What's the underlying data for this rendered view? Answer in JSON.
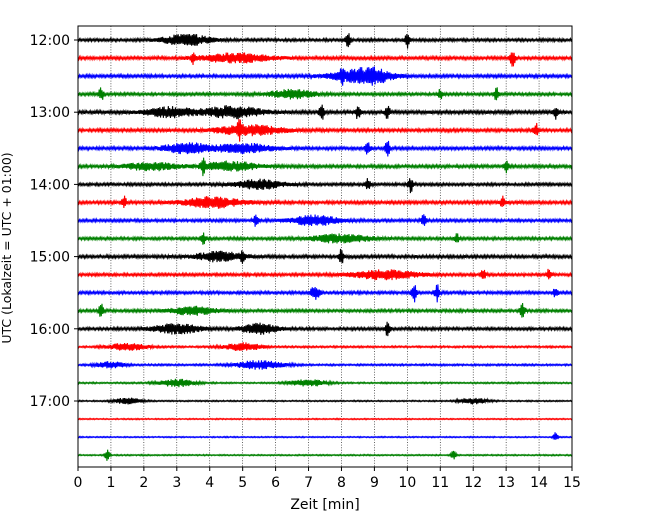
{
  "chart_data": {
    "type": "line",
    "title": "",
    "xlabel": "Zeit  [min]",
    "ylabel": "UTC (Lokalzeit = UTC + 01:00)",
    "xlim": [
      0,
      15
    ],
    "x_ticks": [
      0,
      1,
      2,
      3,
      4,
      5,
      6,
      7,
      8,
      9,
      10,
      11,
      12,
      13,
      14,
      15
    ],
    "x_tick_labels": [
      "0",
      "1",
      "2",
      "3",
      "4",
      "5",
      "6",
      "7",
      "8",
      "9",
      "10",
      "11",
      "12",
      "13",
      "14",
      "15"
    ],
    "y_tick_labels": [
      "12:00",
      "13:00",
      "14:00",
      "15:00",
      "16:00",
      "17:00"
    ],
    "y_tick_rows": [
      0,
      4,
      8,
      12,
      16,
      20
    ],
    "grid": "vertical dotted lines at each minute",
    "trace_colors": [
      "#000000",
      "#ff0000",
      "#0000ff",
      "#008000"
    ],
    "series": [
      {
        "start": "12:00",
        "amplitude": 0.45,
        "events": [
          {
            "t": 3.3,
            "a": 1.8,
            "w": 0.5
          },
          {
            "t": 8.2,
            "a": 2.6,
            "w": 0.05
          },
          {
            "t": 10.0,
            "a": 3.2,
            "w": 0.05
          }
        ]
      },
      {
        "start": "12:15",
        "amplitude": 0.5,
        "events": [
          {
            "t": 4.8,
            "a": 1.5,
            "w": 0.7
          },
          {
            "t": 3.5,
            "a": 1.6,
            "w": 0.05
          },
          {
            "t": 13.2,
            "a": 3.2,
            "w": 0.05
          }
        ]
      },
      {
        "start": "12:30",
        "amplitude": 0.5,
        "events": [
          {
            "t": 8.5,
            "a": 1.6,
            "w": 0.6
          },
          {
            "t": 8.0,
            "a": 2.0,
            "w": 0.05
          },
          {
            "t": 9.0,
            "a": 1.6,
            "w": 0.4
          }
        ]
      },
      {
        "start": "12:45",
        "amplitude": 0.45,
        "events": [
          {
            "t": 0.7,
            "a": 2.6,
            "w": 0.05
          },
          {
            "t": 6.5,
            "a": 1.4,
            "w": 0.5
          },
          {
            "t": 12.7,
            "a": 2.2,
            "w": 0.05
          },
          {
            "t": 11.0,
            "a": 1.8,
            "w": 0.05
          }
        ]
      },
      {
        "start": "13:00",
        "amplitude": 0.55,
        "events": [
          {
            "t": 4.7,
            "a": 1.9,
            "w": 0.6
          },
          {
            "t": 2.8,
            "a": 1.5,
            "w": 0.5
          },
          {
            "t": 7.4,
            "a": 2.6,
            "w": 0.05
          },
          {
            "t": 8.5,
            "a": 2.4,
            "w": 0.05
          },
          {
            "t": 9.4,
            "a": 2.4,
            "w": 0.05
          },
          {
            "t": 14.5,
            "a": 2.4,
            "w": 0.05
          }
        ]
      },
      {
        "start": "13:15",
        "amplitude": 0.5,
        "events": [
          {
            "t": 5.2,
            "a": 1.6,
            "w": 0.7
          },
          {
            "t": 4.9,
            "a": 2.0,
            "w": 0.05
          },
          {
            "t": 13.9,
            "a": 2.6,
            "w": 0.05
          }
        ]
      },
      {
        "start": "13:30",
        "amplitude": 0.5,
        "events": [
          {
            "t": 3.3,
            "a": 1.6,
            "w": 0.5
          },
          {
            "t": 5.0,
            "a": 1.5,
            "w": 0.6
          },
          {
            "t": 8.8,
            "a": 2.2,
            "w": 0.05
          },
          {
            "t": 9.4,
            "a": 2.4,
            "w": 0.05
          }
        ]
      },
      {
        "start": "13:45",
        "amplitude": 0.5,
        "events": [
          {
            "t": 3.8,
            "a": 2.2,
            "w": 0.05
          },
          {
            "t": 4.6,
            "a": 1.5,
            "w": 0.6
          },
          {
            "t": 2.2,
            "a": 1.3,
            "w": 0.5
          },
          {
            "t": 13.0,
            "a": 2.0,
            "w": 0.05
          }
        ]
      },
      {
        "start": "14:00",
        "amplitude": 0.45,
        "events": [
          {
            "t": 5.5,
            "a": 1.5,
            "w": 0.5
          },
          {
            "t": 8.8,
            "a": 2.0,
            "w": 0.05
          },
          {
            "t": 10.1,
            "a": 2.6,
            "w": 0.05
          }
        ]
      },
      {
        "start": "14:15",
        "amplitude": 0.5,
        "events": [
          {
            "t": 4.1,
            "a": 1.7,
            "w": 0.6
          },
          {
            "t": 1.4,
            "a": 2.0,
            "w": 0.05
          },
          {
            "t": 12.9,
            "a": 1.8,
            "w": 0.05
          }
        ]
      },
      {
        "start": "14:30",
        "amplitude": 0.45,
        "events": [
          {
            "t": 7.2,
            "a": 1.6,
            "w": 0.5
          },
          {
            "t": 5.4,
            "a": 2.0,
            "w": 0.05
          },
          {
            "t": 10.5,
            "a": 2.0,
            "w": 0.05
          }
        ]
      },
      {
        "start": "14:45",
        "amplitude": 0.45,
        "events": [
          {
            "t": 3.8,
            "a": 2.2,
            "w": 0.05
          },
          {
            "t": 8.0,
            "a": 1.4,
            "w": 0.6
          },
          {
            "t": 11.5,
            "a": 1.6,
            "w": 0.05
          }
        ]
      },
      {
        "start": "15:00",
        "amplitude": 0.5,
        "events": [
          {
            "t": 4.3,
            "a": 1.6,
            "w": 0.5
          },
          {
            "t": 8.0,
            "a": 2.6,
            "w": 0.05
          },
          {
            "t": 5.0,
            "a": 2.0,
            "w": 0.05
          }
        ]
      },
      {
        "start": "15:15",
        "amplitude": 0.45,
        "events": [
          {
            "t": 9.3,
            "a": 1.5,
            "w": 0.7
          },
          {
            "t": 12.3,
            "a": 1.8,
            "w": 0.05
          },
          {
            "t": 14.3,
            "a": 1.8,
            "w": 0.05
          }
        ]
      },
      {
        "start": "15:30",
        "amplitude": 0.45,
        "events": [
          {
            "t": 7.2,
            "a": 2.2,
            "w": 0.1
          },
          {
            "t": 10.2,
            "a": 3.2,
            "w": 0.05
          },
          {
            "t": 10.9,
            "a": 2.8,
            "w": 0.05
          },
          {
            "t": 14.5,
            "a": 1.6,
            "w": 0.05
          }
        ]
      },
      {
        "start": "15:45",
        "amplitude": 0.45,
        "events": [
          {
            "t": 0.7,
            "a": 2.4,
            "w": 0.05
          },
          {
            "t": 3.5,
            "a": 1.3,
            "w": 0.5
          },
          {
            "t": 13.5,
            "a": 2.6,
            "w": 0.05
          }
        ]
      },
      {
        "start": "16:00",
        "amplitude": 0.45,
        "events": [
          {
            "t": 3.0,
            "a": 1.6,
            "w": 0.5
          },
          {
            "t": 5.5,
            "a": 1.6,
            "w": 0.4
          },
          {
            "t": 9.4,
            "a": 2.4,
            "w": 0.05
          }
        ]
      },
      {
        "start": "16:15",
        "amplitude": 0.3,
        "events": [
          {
            "t": 5.0,
            "a": 1.3,
            "w": 0.4
          },
          {
            "t": 1.5,
            "a": 1.2,
            "w": 0.4
          }
        ]
      },
      {
        "start": "16:30",
        "amplitude": 0.3,
        "events": [
          {
            "t": 5.5,
            "a": 1.4,
            "w": 0.5
          },
          {
            "t": 1.0,
            "a": 1.0,
            "w": 0.3
          }
        ]
      },
      {
        "start": "16:45",
        "amplitude": 0.25,
        "events": [
          {
            "t": 3.0,
            "a": 1.2,
            "w": 0.4
          },
          {
            "t": 7.0,
            "a": 1.1,
            "w": 0.4
          }
        ]
      },
      {
        "start": "17:00",
        "amplitude": 0.22,
        "events": [
          {
            "t": 1.5,
            "a": 1.0,
            "w": 0.3
          },
          {
            "t": 12.0,
            "a": 1.0,
            "w": 0.3
          }
        ]
      },
      {
        "start": "17:15",
        "amplitude": 0.2,
        "events": []
      },
      {
        "start": "17:30",
        "amplitude": 0.2,
        "events": [
          {
            "t": 14.5,
            "a": 1.6,
            "w": 0.05
          }
        ]
      },
      {
        "start": "17:45",
        "amplitude": 0.22,
        "events": [
          {
            "t": 0.9,
            "a": 2.2,
            "w": 0.05
          },
          {
            "t": 11.4,
            "a": 1.6,
            "w": 0.05
          }
        ]
      }
    ]
  }
}
